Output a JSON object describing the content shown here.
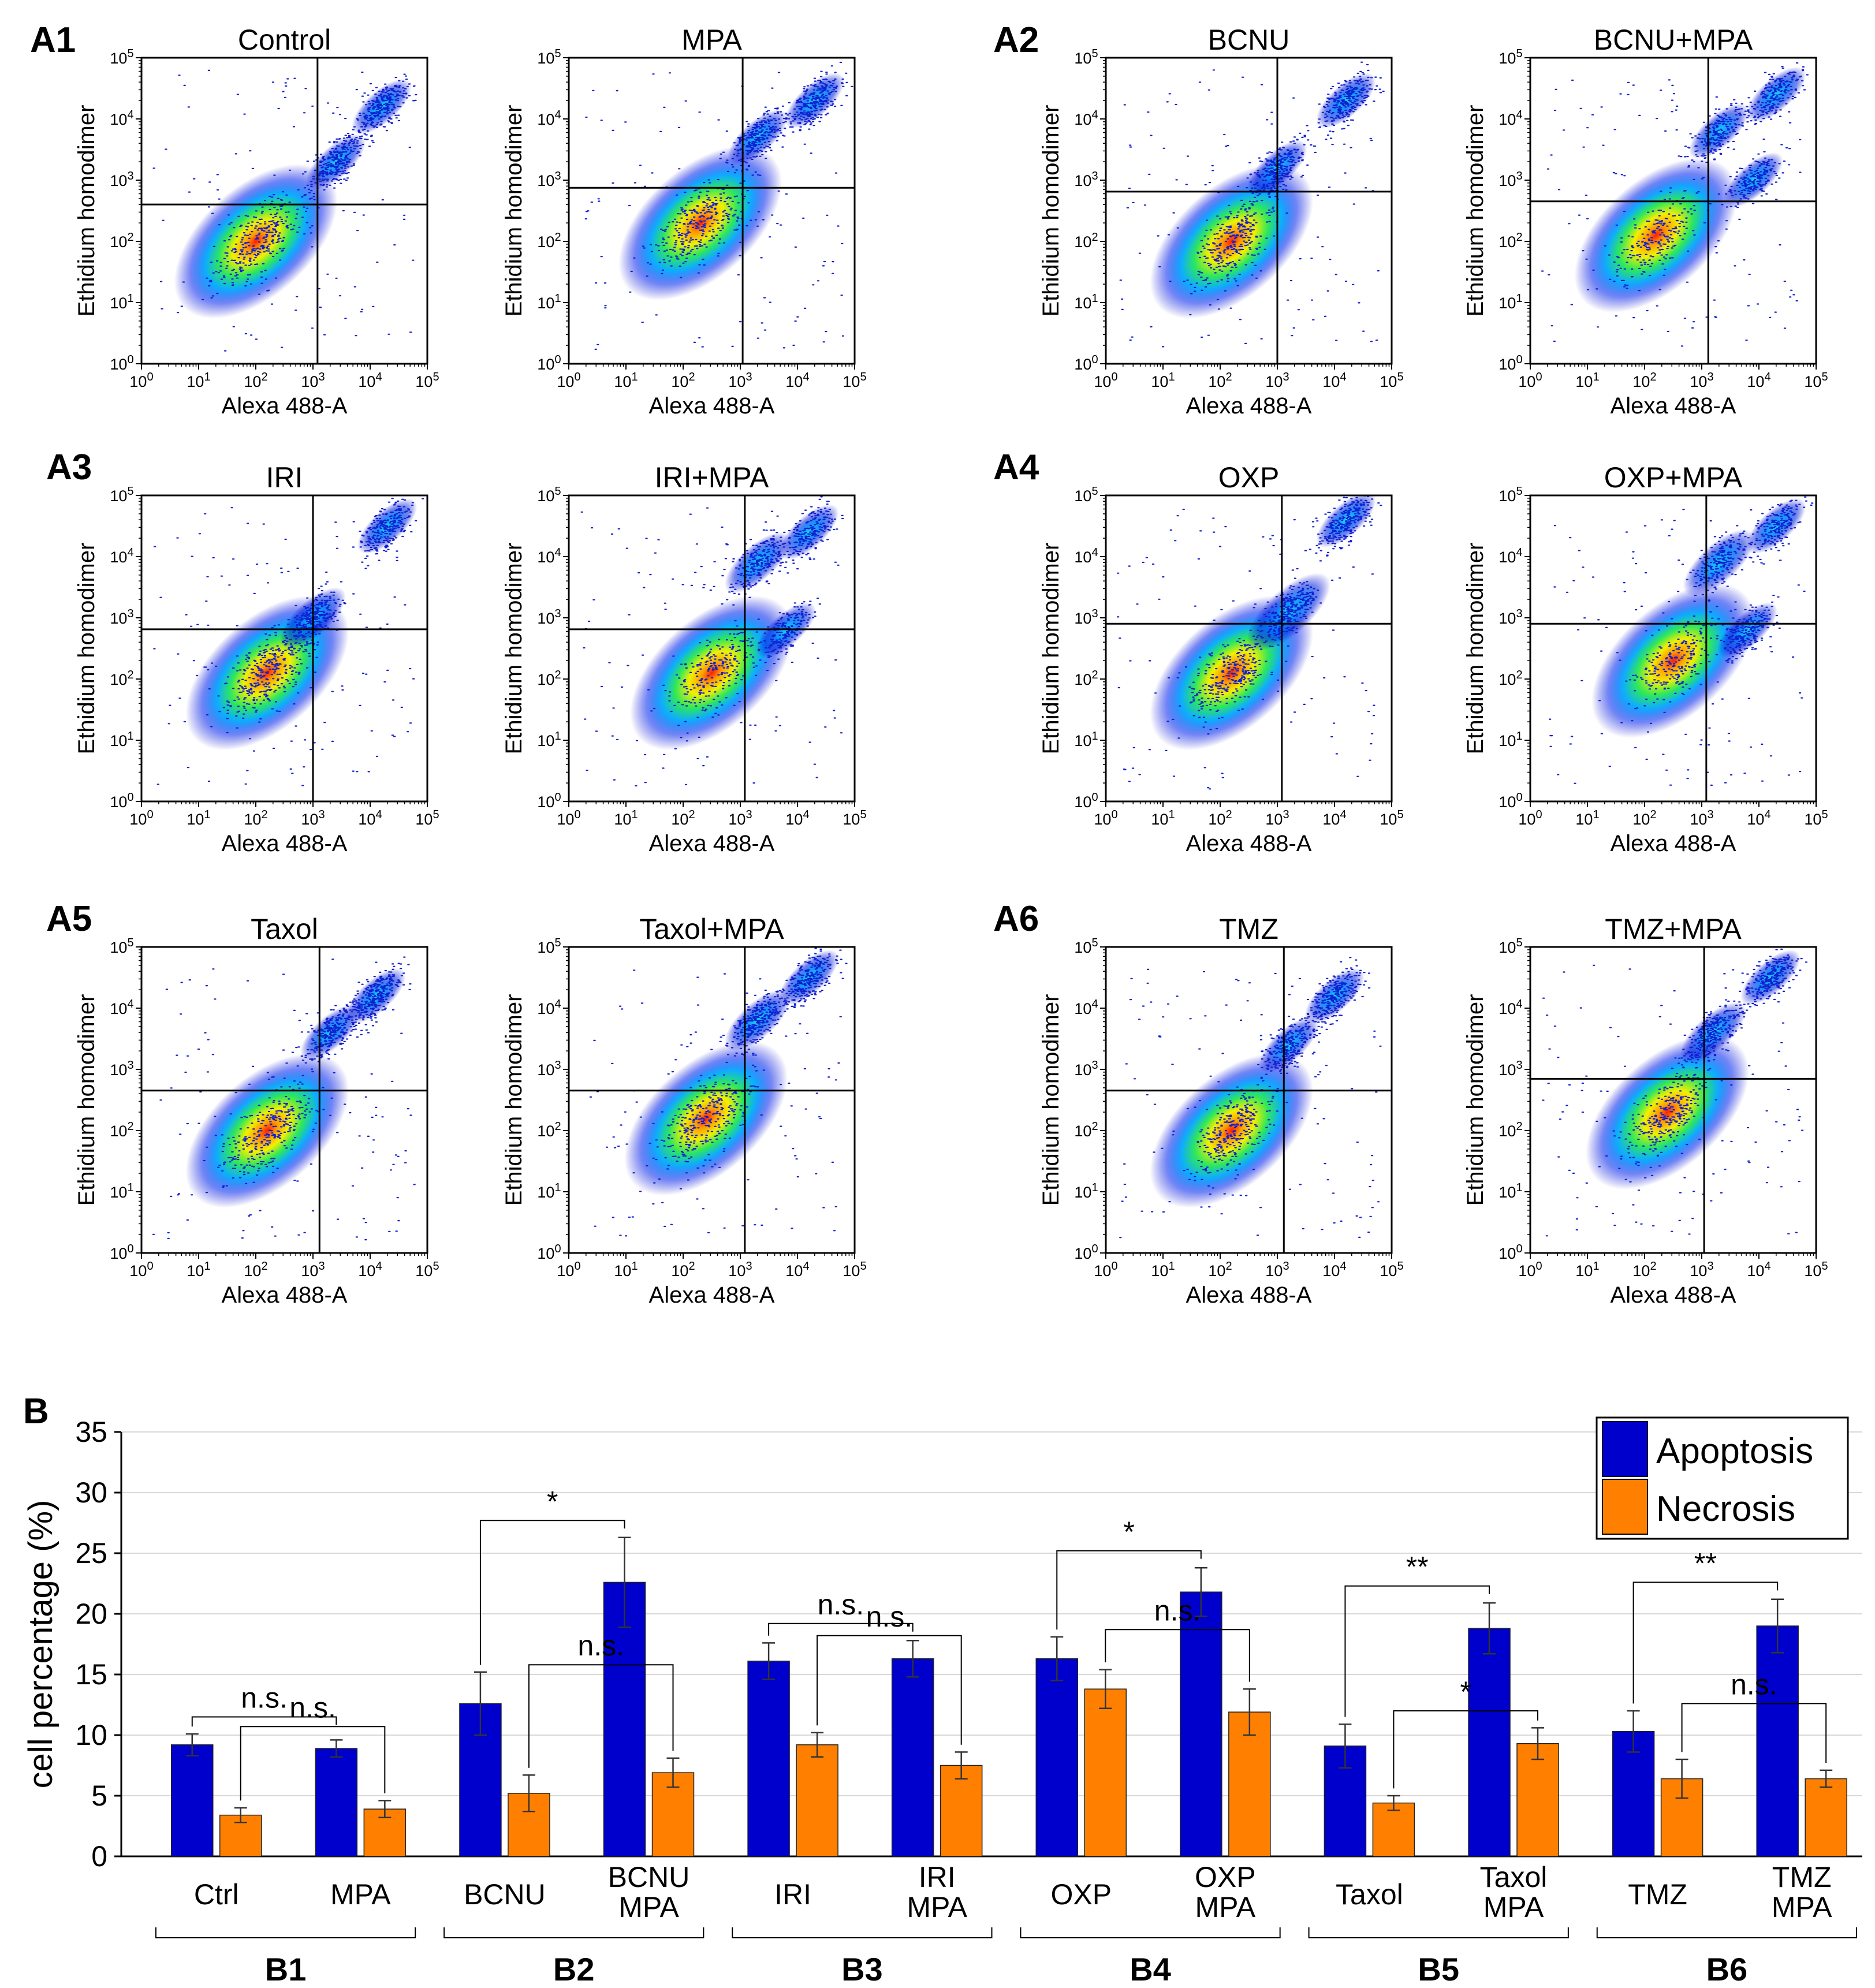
{
  "figure": {
    "panel_a_labels": [
      "A1",
      "A2",
      "A3",
      "A4",
      "A5",
      "A6"
    ],
    "panel_b_label": "B"
  },
  "chart_data": [
    {
      "type": "scatter",
      "subtype": "flow-cytometry-density",
      "panel": "A",
      "xlabel": "Alexa 488-A",
      "ylabel": "Ethidium homodimer",
      "xscale": "log",
      "yscale": "log",
      "xlim": [
        1,
        100000
      ],
      "ylim": [
        1,
        100000
      ],
      "tick_labels": [
        "10^0",
        "10^1",
        "10^2",
        "10^3",
        "10^4",
        "10^5"
      ],
      "plots": [
        {
          "title": "Control",
          "gate_x": 1200,
          "gate_y": 400,
          "blobs": [
            [
              2.0,
              2.0,
              1.0
            ],
            [
              3.4,
              3.3,
              0.35
            ],
            [
              4.2,
              4.2,
              0.25
            ]
          ]
        },
        {
          "title": "MPA",
          "gate_x": 1100,
          "gate_y": 750,
          "blobs": [
            [
              2.3,
              2.3,
              1.0
            ],
            [
              3.3,
              3.7,
              0.35
            ],
            [
              4.3,
              4.3,
              0.3
            ]
          ]
        },
        {
          "title": "BCNU",
          "gate_x": 1000,
          "gate_y": 650,
          "blobs": [
            [
              2.2,
              2.0,
              1.0
            ],
            [
              3.0,
              3.2,
              0.45
            ],
            [
              4.2,
              4.3,
              0.35
            ]
          ]
        },
        {
          "title": "BCNU+MPA",
          "gate_x": 1300,
          "gate_y": 450,
          "blobs": [
            [
              2.2,
              2.1,
              1.0
            ],
            [
              3.3,
              3.8,
              0.5
            ],
            [
              4.3,
              4.4,
              0.45
            ],
            [
              3.9,
              3.0,
              0.15
            ]
          ]
        },
        {
          "title": "IRI",
          "gate_x": 1000,
          "gate_y": 650,
          "blobs": [
            [
              2.2,
              2.1,
              1.0
            ],
            [
              3.0,
              3.0,
              0.55
            ],
            [
              4.3,
              4.5,
              0.35
            ]
          ]
        },
        {
          "title": "IRI+MPA",
          "gate_x": 1200,
          "gate_y": 650,
          "blobs": [
            [
              2.5,
              2.1,
              1.0
            ],
            [
              3.3,
              3.9,
              0.55
            ],
            [
              4.2,
              4.4,
              0.4
            ],
            [
              3.8,
              2.8,
              0.2
            ]
          ]
        },
        {
          "title": "OXP",
          "gate_x": 1200,
          "gate_y": 800,
          "blobs": [
            [
              2.2,
              2.1,
              1.0
            ],
            [
              3.2,
              3.1,
              0.7
            ],
            [
              4.2,
              4.6,
              0.4
            ]
          ]
        },
        {
          "title": "OXP+MPA",
          "gate_x": 1200,
          "gate_y": 800,
          "blobs": [
            [
              2.5,
              2.3,
              1.0
            ],
            [
              3.3,
              3.9,
              0.6
            ],
            [
              4.3,
              4.5,
              0.5
            ],
            [
              3.8,
              2.8,
              0.2
            ]
          ]
        },
        {
          "title": "Taxol",
          "gate_x": 1300,
          "gate_y": 450,
          "blobs": [
            [
              2.2,
              2.0,
              1.0
            ],
            [
              3.3,
              3.6,
              0.45
            ],
            [
              4.1,
              4.2,
              0.25
            ]
          ]
        },
        {
          "title": "Taxol+MPA",
          "gate_x": 1200,
          "gate_y": 450,
          "blobs": [
            [
              2.4,
              2.2,
              1.0
            ],
            [
              3.3,
              3.8,
              0.55
            ],
            [
              4.2,
              4.5,
              0.45
            ]
          ]
        },
        {
          "title": "TMZ",
          "gate_x": 1300,
          "gate_y": 450,
          "blobs": [
            [
              2.2,
              2.0,
              1.0
            ],
            [
              3.2,
              3.4,
              0.45
            ],
            [
              4.0,
              4.2,
              0.3
            ]
          ]
        },
        {
          "title": "TMZ+MPA",
          "gate_x": 1100,
          "gate_y": 700,
          "blobs": [
            [
              2.4,
              2.3,
              1.0
            ],
            [
              3.2,
              3.6,
              0.55
            ],
            [
              4.2,
              4.5,
              0.4
            ]
          ]
        }
      ]
    },
    {
      "type": "bar",
      "panel": "B",
      "ylabel": "cell percentage (%)",
      "ylim": [
        0,
        35
      ],
      "yticks": [
        0,
        5,
        10,
        15,
        20,
        25,
        30,
        35
      ],
      "grid": true,
      "legend_position": "top-right",
      "series_names": [
        "Apoptosis",
        "Necrosis"
      ],
      "colors": {
        "Apoptosis": "#0000cc",
        "Necrosis": "#ff8000"
      },
      "categories": [
        {
          "label": [
            "Ctrl"
          ],
          "apoptosis": 9.2,
          "apoptosis_err": 0.9,
          "necrosis": 3.4,
          "necrosis_err": 0.6
        },
        {
          "label": [
            "MPA"
          ],
          "apoptosis": 8.9,
          "apoptosis_err": 0.7,
          "necrosis": 3.9,
          "necrosis_err": 0.7
        },
        {
          "label": [
            "BCNU"
          ],
          "apoptosis": 12.6,
          "apoptosis_err": 2.6,
          "necrosis": 5.2,
          "necrosis_err": 1.5
        },
        {
          "label": [
            "BCNU",
            "MPA"
          ],
          "apoptosis": 22.6,
          "apoptosis_err": 3.7,
          "necrosis": 6.9,
          "necrosis_err": 1.2
        },
        {
          "label": [
            "IRI"
          ],
          "apoptosis": 16.1,
          "apoptosis_err": 1.5,
          "necrosis": 9.2,
          "necrosis_err": 1.0
        },
        {
          "label": [
            "IRI",
            "MPA"
          ],
          "apoptosis": 16.3,
          "apoptosis_err": 1.5,
          "necrosis": 7.5,
          "necrosis_err": 1.1
        },
        {
          "label": [
            "OXP"
          ],
          "apoptosis": 16.3,
          "apoptosis_err": 1.8,
          "necrosis": 13.8,
          "necrosis_err": 1.6
        },
        {
          "label": [
            "OXP",
            "MPA"
          ],
          "apoptosis": 21.8,
          "apoptosis_err": 2.0,
          "necrosis": 11.9,
          "necrosis_err": 1.9
        },
        {
          "label": [
            "Taxol"
          ],
          "apoptosis": 9.1,
          "apoptosis_err": 1.8,
          "necrosis": 4.4,
          "necrosis_err": 0.6
        },
        {
          "label": [
            "Taxol",
            "MPA"
          ],
          "apoptosis": 18.8,
          "apoptosis_err": 2.1,
          "necrosis": 9.3,
          "necrosis_err": 1.3
        },
        {
          "label": [
            "TMZ"
          ],
          "apoptosis": 10.3,
          "apoptosis_err": 1.7,
          "necrosis": 6.4,
          "necrosis_err": 1.6
        },
        {
          "label": [
            "TMZ",
            "MPA"
          ],
          "apoptosis": 19.0,
          "apoptosis_err": 2.2,
          "necrosis": 6.4,
          "necrosis_err": 0.7
        }
      ],
      "groups": [
        "B1",
        "B2",
        "B3",
        "B4",
        "B5",
        "B6"
      ],
      "significance": [
        {
          "group": "B1",
          "apoptosis": "n.s.",
          "necrosis": "n.s."
        },
        {
          "group": "B2",
          "apoptosis": "*",
          "necrosis": "n.s."
        },
        {
          "group": "B3",
          "apoptosis": "n.s.",
          "necrosis": "n.s."
        },
        {
          "group": "B4",
          "apoptosis": "*",
          "necrosis": "n.s."
        },
        {
          "group": "B5",
          "apoptosis": "**",
          "necrosis": "*"
        },
        {
          "group": "B6",
          "apoptosis": "**",
          "necrosis": "n.s."
        }
      ]
    }
  ]
}
